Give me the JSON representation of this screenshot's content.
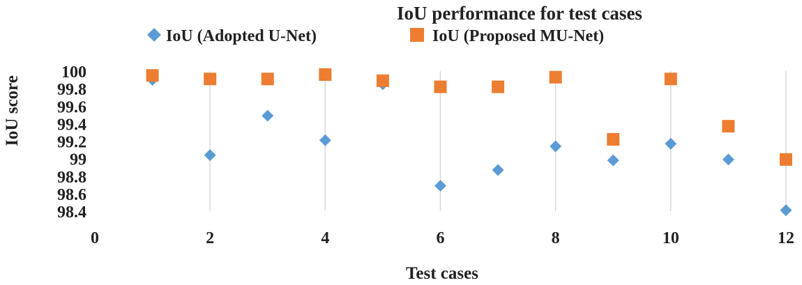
{
  "chart_data": {
    "type": "scatter",
    "title": "IoU performance for test cases",
    "xlabel": "Test cases",
    "ylabel": "IoU score",
    "xlim": [
      0,
      12
    ],
    "ylim": [
      98.4,
      100
    ],
    "x_ticks": [
      "0",
      "2",
      "4",
      "6",
      "8",
      "10",
      "12"
    ],
    "y_ticks": [
      "100",
      "99.8",
      "99.6",
      "99.4",
      "99.2",
      "99",
      "98.8",
      "98.6",
      "98.4"
    ],
    "grid": "vertical",
    "legend_position": "top",
    "series": [
      {
        "name": "IoU (Adopted U-Net)",
        "marker": "diamond",
        "color": "#5b9bd5",
        "x": [
          1,
          2,
          3,
          4,
          5,
          6,
          7,
          8,
          9,
          10,
          11,
          12
        ],
        "y": [
          99.9,
          99.04,
          99.49,
          99.21,
          99.85,
          98.69,
          98.87,
          99.14,
          98.98,
          99.17,
          98.99,
          98.41
        ]
      },
      {
        "name": "IoU (Proposed MU-Net)",
        "marker": "square",
        "color": "#ed7d31",
        "x": [
          1,
          2,
          3,
          4,
          5,
          6,
          7,
          8,
          9,
          10,
          11,
          12
        ],
        "y": [
          99.95,
          99.91,
          99.91,
          99.96,
          99.89,
          99.82,
          99.82,
          99.93,
          99.22,
          99.91,
          99.37,
          98.99
        ]
      }
    ]
  }
}
